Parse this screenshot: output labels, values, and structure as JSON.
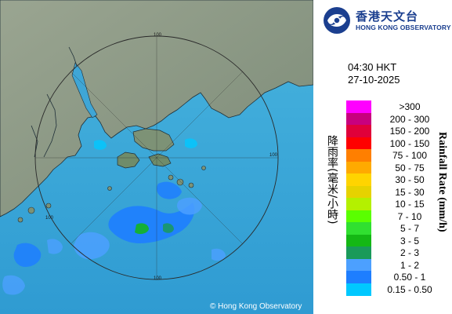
{
  "header": {
    "org_name_cn": "香港天文台",
    "org_name_en": "HONG KONG OBSERVATORY"
  },
  "timestamp": {
    "time": "04:30 HKT",
    "date": "27-10-2025"
  },
  "legend": {
    "title_cn": "降雨率(毫米/小時)",
    "title_en": "Rainfall Rate (mm/h)",
    "items": [
      {
        "label": ">300",
        "color": "#ff00ff"
      },
      {
        "label": "200 - 300",
        "color": "#c8007e"
      },
      {
        "label": "150 - 200",
        "color": "#e0003a"
      },
      {
        "label": "100 - 150",
        "color": "#ff0000"
      },
      {
        "label": "75 - 100",
        "color": "#ff7f00"
      },
      {
        "label": "50 - 75",
        "color": "#ffaa00"
      },
      {
        "label": "30 - 50",
        "color": "#ffd400"
      },
      {
        "label": "15 - 30",
        "color": "#e6d200"
      },
      {
        "label": "10 - 15",
        "color": "#b4f000"
      },
      {
        "label": "7 - 10",
        "color": "#5aff00"
      },
      {
        "label": "5 - 7",
        "color": "#30e030"
      },
      {
        "label": "3 - 5",
        "color": "#14b814"
      },
      {
        "label": "2 - 3",
        "color": "#1a9a5a"
      },
      {
        "label": "1 - 2",
        "color": "#4ca0ff"
      },
      {
        "label": "0.50 - 1",
        "color": "#1e7eff"
      },
      {
        "label": "0.15 - 0.50",
        "color": "#00c8ff"
      }
    ]
  },
  "map": {
    "range_labels": [
      "100",
      "100",
      "100",
      "100"
    ],
    "copyright": "© Hong Kong Observatory",
    "colors": {
      "land": "#8a9684",
      "sea": "#3fa6d6",
      "ring": "#2a2a2a"
    }
  }
}
